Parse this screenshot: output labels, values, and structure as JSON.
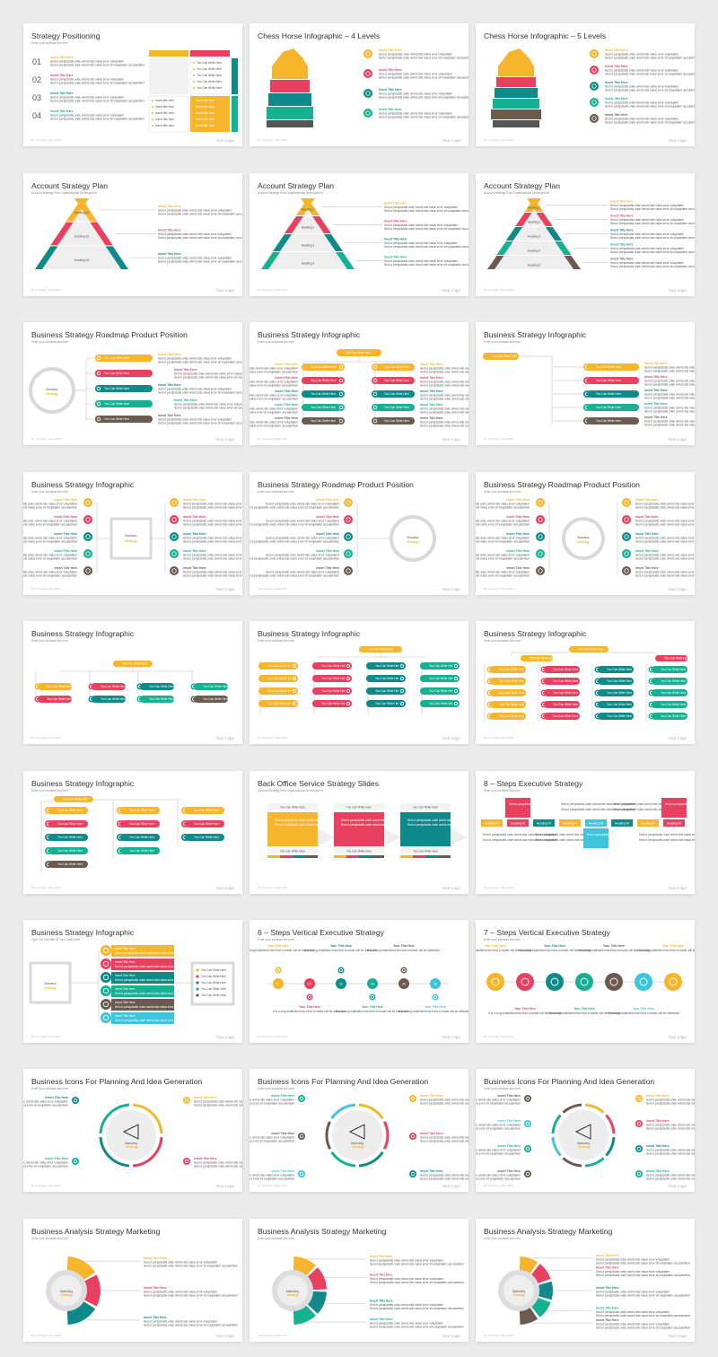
{
  "ui": {
    "subtitle": "Enter your subhead line here",
    "footer": "00 | Company | Date 2018",
    "logo": "Your Logo"
  },
  "labels": {
    "title_here": "Insert Title Here",
    "title_here_lc": "Insert title here",
    "you_can": "You Can Write Here",
    "lorem": "Sed ut perspiciatis unde omnis iste natus error voluptatem",
    "lorem2": "Sed ut perspiciatis unde omnis iste natus error sit voluptatem accusantium",
    "bs": "Business",
    "bs2": "Strategy",
    "mk": "Marketing",
    "mk2": "Strategy",
    "your_title": "Your Title Here",
    "long_est": "It is a long established fact that a reader will be distracted."
  },
  "colors": {
    "yellow": "#f7b52c",
    "red": "#e8405f",
    "teal": "#0f8a8a",
    "green": "#16b093",
    "brown": "#6b5a4e",
    "cyan": "#3ec4dc",
    "grey": "#d9d9d9"
  },
  "slides": [
    {
      "title": "Strategy Positioning",
      "sub": "Enter your subhead line here",
      "nums": [
        "01",
        "02",
        "03",
        "04"
      ]
    },
    {
      "title": "Chess Horse Infographic – 4 Levels",
      "sub": ""
    },
    {
      "title": "Chess Horse Infographic – 5 Levels",
      "sub": ""
    },
    {
      "title": "Account Strategy Plan",
      "sub": "Account Strategy Plan Organizational Development",
      "steps": [
        "01",
        "02",
        "03"
      ],
      "headings": [
        "Heading 01",
        "Heading 02",
        "Heading 03"
      ]
    },
    {
      "title": "Account Strategy Plan",
      "sub": "Account Strategy Plan Organizational Development",
      "steps": [
        "01",
        "02",
        "03",
        "04"
      ],
      "headings": [
        "Heading 1",
        "Heading 2",
        "Heading 3",
        "Heading 4"
      ]
    },
    {
      "title": "Account Strategy Plan",
      "sub": "Account Strategy Plan Organizational Development",
      "steps": [
        "01",
        "02",
        "03",
        "04",
        "05"
      ],
      "headings": [
        "Heading 1",
        "Heading 2",
        "Heading 3",
        "Heading 4",
        "Heading 5"
      ]
    },
    {
      "title": "Business Strategy Roadmap Product Position",
      "sub": "Enter your subhead line here"
    },
    {
      "title": "Business Strategy Infographic",
      "sub": "Enter your subhead line here"
    },
    {
      "title": "Business Strategy Infographic",
      "sub": "Enter your subhead line here"
    },
    {
      "title": "Business Strategy Infographic",
      "sub": "Enter your subhead line here"
    },
    {
      "title": "Business Strategy Roadmap Product Position",
      "sub": "Enter your subhead line here"
    },
    {
      "title": "Business Strategy Roadmap Product Position",
      "sub": "Enter your subhead line here"
    },
    {
      "title": "Business Strategy Infographic",
      "sub": "Enter your subhead line here"
    },
    {
      "title": "Business Strategy Infographic",
      "sub": "Enter your subhead line here"
    },
    {
      "title": "Business Strategy Infographic",
      "sub": "Enter your subhead line here"
    },
    {
      "title": "Business Strategy Infographic",
      "sub": "Enter your subhead line here"
    },
    {
      "title": "Back Office Service Strategy Slides",
      "sub": "Account Strategy Plan Organizational Development"
    },
    {
      "title": "8 – Steps Executive Strategy",
      "sub": "Enter your subhead line here",
      "headings": [
        "Heading 01",
        "Heading 02",
        "Heading 03",
        "Heading 04",
        "Heading 05",
        "Heading 06",
        "Heading 07",
        "Heading 08"
      ]
    },
    {
      "title": "Business Strategy Infographic",
      "sub": "Type The Sub-title Of Your Great Here"
    },
    {
      "title": "6 – Steps Vertical Executive Strategy",
      "sub": "Enter your subhead line here",
      "steps": [
        "01",
        "02",
        "03",
        "04",
        "05",
        "06"
      ]
    },
    {
      "title": "7 – Steps Vertical Executive Strategy",
      "sub": "Enter your subhead line here"
    },
    {
      "title": "Business Icons For Planning And Idea Generation",
      "sub": "Enter your subhead line here"
    },
    {
      "title": "Business Icons For Planning And Idea Generation",
      "sub": "Enter your subhead line here"
    },
    {
      "title": "Business Icons For Planning And Idea Generation",
      "sub": "Enter your subhead line here"
    },
    {
      "title": "Business Analysis Strategy Marketing",
      "sub": "Enter your subhead line here"
    },
    {
      "title": "Business Analysis Strategy Marketing",
      "sub": "Enter your subhead line here"
    },
    {
      "title": "Business Analysis Strategy Marketing",
      "sub": "Enter your subhead line here"
    }
  ]
}
